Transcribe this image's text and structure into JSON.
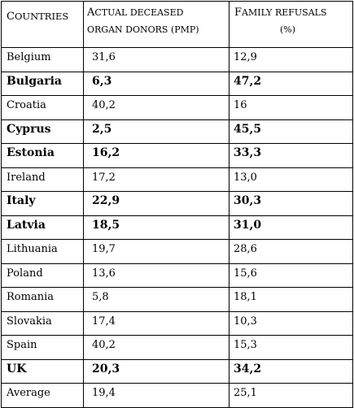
{
  "header": {
    "countries": "Countries",
    "countries_first": "C",
    "countries_rest": "OUNTRIES",
    "donors_line1": "Actual deceased",
    "donors_line1_first": "A",
    "donors_line1_rest": "CTUAL DECEASED",
    "donors_line2": "organ donors (PMP)",
    "donors_line2_render": "ORGAN DONORS (PMP)",
    "refusals_line1": "Family refusals",
    "refusals_line1_first": "F",
    "refusals_line1_rest": "AMILY REFUSALS",
    "refusals_line2": "(%)"
  },
  "rows": [
    {
      "country": "Belgium",
      "donors": "31,6",
      "refusals": "12,9",
      "bold": false
    },
    {
      "country": "Bulgaria",
      "donors": "6,3",
      "refusals": "47,2",
      "bold": true
    },
    {
      "country": "Croatia",
      "donors": "40,2",
      "refusals": "16",
      "bold": false
    },
    {
      "country": "Cyprus",
      "donors": "2,5",
      "refusals": "45,5",
      "bold": true
    },
    {
      "country": "Estonia",
      "donors": "16,2",
      "refusals": "33,3",
      "bold": true
    },
    {
      "country": "Ireland",
      "donors": "17,2",
      "refusals": "13,0",
      "bold": false
    },
    {
      "country": "Italy",
      "donors": "22,9",
      "refusals": "30,3",
      "bold": true
    },
    {
      "country": "Latvia",
      "donors": "18,5",
      "refusals": "31,0",
      "bold": true
    },
    {
      "country": "Lithuania",
      "donors": "19,7",
      "refusals": "28,6",
      "bold": false
    },
    {
      "country": "Poland",
      "donors": "13,6",
      "refusals": "15,6",
      "bold": false
    },
    {
      "country": "Romania",
      "donors": "5,8",
      "refusals": "18,1",
      "bold": false
    },
    {
      "country": "Slovakia",
      "donors": "17,4",
      "refusals": "10,3",
      "bold": false
    },
    {
      "country": "Spain",
      "donors": "40,2",
      "refusals": "15,3",
      "bold": false
    },
    {
      "country": "UK",
      "donors": "20,3",
      "refusals": "34,2",
      "bold": true
    },
    {
      "country": "Average",
      "donors": "19,4",
      "refusals": "25,1",
      "bold": false
    }
  ]
}
